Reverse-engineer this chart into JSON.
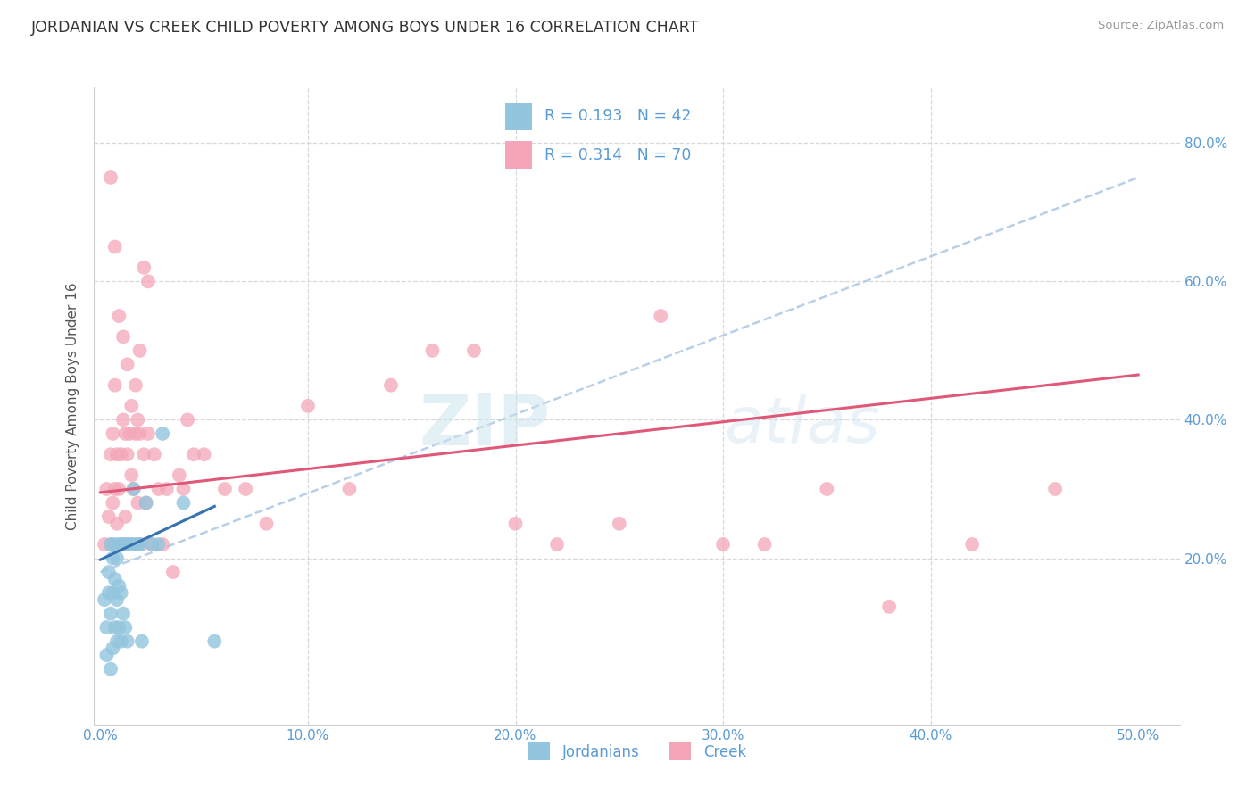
{
  "title": "JORDANIAN VS CREEK CHILD POVERTY AMONG BOYS UNDER 16 CORRELATION CHART",
  "source": "Source: ZipAtlas.com",
  "ylabel": "Child Poverty Among Boys Under 16",
  "xlim": [
    -0.003,
    0.52
  ],
  "ylim": [
    -0.04,
    0.88
  ],
  "xtick_vals": [
    0.0,
    0.1,
    0.2,
    0.3,
    0.4,
    0.5
  ],
  "xtick_labels": [
    "0.0%",
    "10.0%",
    "20.0%",
    "30.0%",
    "40.0%",
    "50.0%"
  ],
  "ytick_vals": [
    0.2,
    0.4,
    0.6,
    0.8
  ],
  "ytick_labels": [
    "20.0%",
    "40.0%",
    "60.0%",
    "80.0%"
  ],
  "blue_fill": "#92c5de",
  "pink_fill": "#f4a6b8",
  "blue_line": "#3572b0",
  "pink_line": "#e05878",
  "dashed_line": "#b8cfe8",
  "axis_label_color": "#5b9bd5",
  "legend_label1": "Jordanians",
  "legend_label2": "Creek",
  "watermark": "ZIPatlas",
  "jordanian_x": [
    0.002,
    0.003,
    0.003,
    0.004,
    0.004,
    0.005,
    0.005,
    0.005,
    0.006,
    0.006,
    0.006,
    0.007,
    0.007,
    0.007,
    0.008,
    0.008,
    0.008,
    0.009,
    0.009,
    0.009,
    0.01,
    0.01,
    0.01,
    0.011,
    0.011,
    0.012,
    0.012,
    0.013,
    0.013,
    0.014,
    0.015,
    0.016,
    0.017,
    0.018,
    0.019,
    0.02,
    0.022,
    0.025,
    0.028,
    0.03,
    0.04,
    0.055
  ],
  "jordanian_y": [
    0.14,
    0.06,
    0.1,
    0.15,
    0.18,
    0.04,
    0.12,
    0.22,
    0.07,
    0.15,
    0.2,
    0.1,
    0.17,
    0.22,
    0.08,
    0.14,
    0.2,
    0.1,
    0.16,
    0.22,
    0.08,
    0.15,
    0.22,
    0.12,
    0.22,
    0.1,
    0.22,
    0.08,
    0.22,
    0.22,
    0.22,
    0.3,
    0.22,
    0.22,
    0.22,
    0.08,
    0.28,
    0.22,
    0.22,
    0.38,
    0.28,
    0.08
  ],
  "creek_x": [
    0.002,
    0.003,
    0.004,
    0.005,
    0.005,
    0.006,
    0.006,
    0.007,
    0.007,
    0.008,
    0.008,
    0.009,
    0.01,
    0.01,
    0.011,
    0.012,
    0.012,
    0.013,
    0.013,
    0.014,
    0.015,
    0.015,
    0.016,
    0.017,
    0.018,
    0.018,
    0.019,
    0.02,
    0.021,
    0.022,
    0.023,
    0.025,
    0.026,
    0.028,
    0.03,
    0.032,
    0.035,
    0.038,
    0.04,
    0.042,
    0.045,
    0.05,
    0.06,
    0.07,
    0.08,
    0.1,
    0.12,
    0.14,
    0.16,
    0.18,
    0.2,
    0.22,
    0.25,
    0.27,
    0.3,
    0.32,
    0.35,
    0.38,
    0.42,
    0.46,
    0.005,
    0.007,
    0.009,
    0.011,
    0.013,
    0.015,
    0.017,
    0.019,
    0.021,
    0.023
  ],
  "creek_y": [
    0.22,
    0.3,
    0.26,
    0.22,
    0.35,
    0.28,
    0.38,
    0.3,
    0.45,
    0.25,
    0.35,
    0.3,
    0.22,
    0.35,
    0.4,
    0.26,
    0.38,
    0.35,
    0.22,
    0.38,
    0.22,
    0.32,
    0.3,
    0.45,
    0.28,
    0.4,
    0.38,
    0.22,
    0.35,
    0.28,
    0.38,
    0.22,
    0.35,
    0.3,
    0.22,
    0.3,
    0.18,
    0.32,
    0.3,
    0.4,
    0.35,
    0.35,
    0.3,
    0.3,
    0.25,
    0.42,
    0.3,
    0.45,
    0.5,
    0.5,
    0.25,
    0.22,
    0.25,
    0.55,
    0.22,
    0.22,
    0.3,
    0.13,
    0.22,
    0.3,
    0.75,
    0.65,
    0.55,
    0.52,
    0.48,
    0.42,
    0.38,
    0.5,
    0.62,
    0.6
  ],
  "pink_line_x0": 0.0,
  "pink_line_y0": 0.295,
  "pink_line_x1": 0.5,
  "pink_line_y1": 0.465,
  "blue_line_x0": 0.0,
  "blue_line_y0": 0.198,
  "blue_line_x1": 0.055,
  "blue_line_y1": 0.275,
  "dash_line_x0": 0.0,
  "dash_line_y0": 0.18,
  "dash_line_x1": 0.5,
  "dash_line_y1": 0.75
}
